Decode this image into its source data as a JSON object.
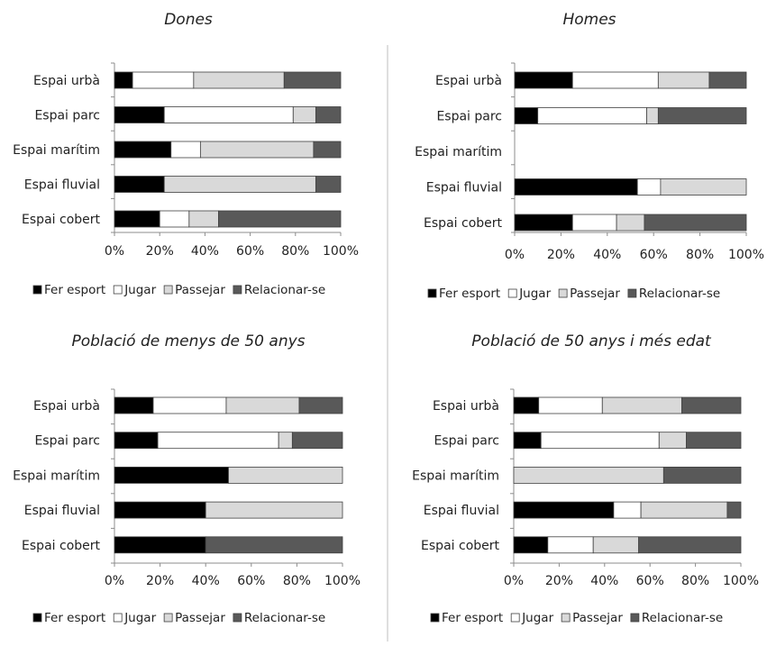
{
  "colors": {
    "fer_esport": "#000000",
    "jugar": "#ffffff",
    "passejar": "#d9d9d9",
    "relacionar": "#595959",
    "outline": "#404040",
    "axis": "#8c8c8c",
    "divider": "#bfbfbf"
  },
  "chart_data": [
    {
      "type": "bar",
      "orientation": "horizontal",
      "stacked": true,
      "title": "Dones",
      "categories": [
        "Espai urbà",
        "Espai parc",
        "Espai marítim",
        "Espai fluvial",
        "Espai cobert"
      ],
      "xlim": [
        0,
        100
      ],
      "xticks": [
        "0%",
        "20%",
        "40%",
        "60%",
        "80%",
        "100%"
      ],
      "legend_position": "bottom",
      "series": [
        {
          "name": "Fer esport",
          "values": [
            8,
            22,
            25,
            22,
            20
          ]
        },
        {
          "name": "Jugar",
          "values": [
            27,
            57,
            13,
            0,
            13
          ]
        },
        {
          "name": "Passejar",
          "values": [
            40,
            10,
            50,
            67,
            13
          ]
        },
        {
          "name": "Relacionar-se",
          "values": [
            25,
            11,
            12,
            11,
            54
          ]
        }
      ]
    },
    {
      "type": "bar",
      "orientation": "horizontal",
      "stacked": true,
      "title": "Homes",
      "categories": [
        "Espai urbà",
        "Espai parc",
        "Espai marítim",
        "Espai fluvial",
        "Espai cobert"
      ],
      "xlim": [
        0,
        100
      ],
      "xticks": [
        "0%",
        "20%",
        "40%",
        "60%",
        "80%",
        "100%"
      ],
      "legend_position": "bottom",
      "series": [
        {
          "name": "Fer esport",
          "values": [
            25,
            10,
            0,
            53,
            25
          ]
        },
        {
          "name": "Jugar",
          "values": [
            37,
            47,
            0,
            10,
            19
          ]
        },
        {
          "name": "Passejar",
          "values": [
            22,
            5,
            0,
            37,
            12
          ]
        },
        {
          "name": "Relacionar-se",
          "values": [
            16,
            38,
            0,
            0,
            44
          ]
        }
      ]
    },
    {
      "type": "bar",
      "orientation": "horizontal",
      "stacked": true,
      "title": "Població de menys de 50 anys",
      "categories": [
        "Espai urbà",
        "Espai parc",
        "Espai marítim",
        "Espai fluvial",
        "Espai cobert"
      ],
      "xlim": [
        0,
        100
      ],
      "xticks": [
        "0%",
        "20%",
        "40%",
        "60%",
        "80%",
        "100%"
      ],
      "legend_position": "bottom",
      "series": [
        {
          "name": "Fer esport",
          "values": [
            17,
            19,
            50,
            40,
            40
          ]
        },
        {
          "name": "Jugar",
          "values": [
            32,
            53,
            0,
            0,
            0
          ]
        },
        {
          "name": "Passejar",
          "values": [
            32,
            6,
            50,
            60,
            0
          ]
        },
        {
          "name": "Relacionar-se",
          "values": [
            19,
            22,
            0,
            0,
            60
          ]
        }
      ]
    },
    {
      "type": "bar",
      "orientation": "horizontal",
      "stacked": true,
      "title": "Població de 50 anys i més edat",
      "categories": [
        "Espai urbà",
        "Espai parc",
        "Espai marítim",
        "Espai fluvial",
        "Espai cobert"
      ],
      "xlim": [
        0,
        100
      ],
      "xticks": [
        "0%",
        "20%",
        "40%",
        "60%",
        "80%",
        "100%"
      ],
      "legend_position": "bottom",
      "series": [
        {
          "name": "Fer esport",
          "values": [
            11,
            12,
            0,
            44,
            15
          ]
        },
        {
          "name": "Jugar",
          "values": [
            28,
            52,
            0,
            12,
            20
          ]
        },
        {
          "name": "Passejar",
          "values": [
            35,
            12,
            66,
            38,
            20
          ]
        },
        {
          "name": "Relacionar-se",
          "values": [
            26,
            24,
            34,
            6,
            45
          ]
        }
      ]
    }
  ]
}
